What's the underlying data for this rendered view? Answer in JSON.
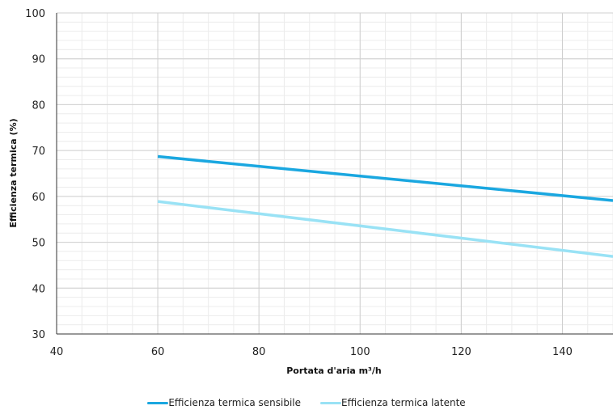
{
  "chart_data": {
    "type": "line",
    "title": "",
    "xlabel": "Portata d'aria m³/h",
    "ylabel": "Efficienza termica (%)",
    "xlim": [
      40,
      150
    ],
    "ylim": [
      30,
      100
    ],
    "xticks": [
      40,
      60,
      80,
      100,
      120,
      140
    ],
    "yticks": [
      30,
      40,
      50,
      60,
      70,
      80,
      90,
      100
    ],
    "grid": true,
    "legend_position": "bottom",
    "series": [
      {
        "name": "Efficienza termica sensibile",
        "color": "#1aa7e0",
        "x": [
          60,
          150
        ],
        "y": [
          68.7,
          59.1
        ]
      },
      {
        "name": "Efficienza termica latente",
        "color": "#99e2f5",
        "x": [
          60,
          150
        ],
        "y": [
          58.9,
          46.9
        ]
      }
    ]
  }
}
